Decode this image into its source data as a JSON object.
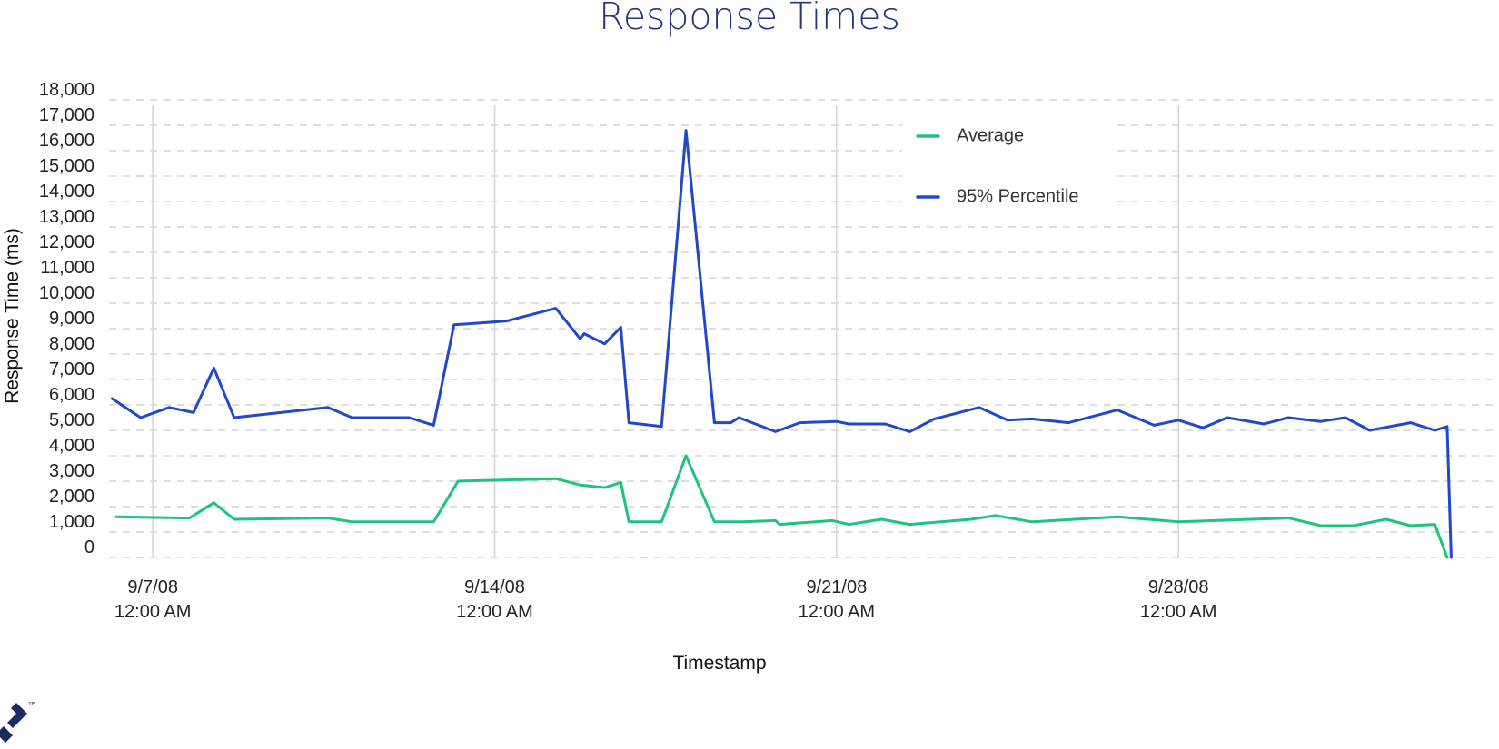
{
  "page": {
    "background": "#ffffff"
  },
  "logo": {
    "icon": "toptal-logo-icon",
    "mark": "™",
    "color": "#1a2a66"
  },
  "chart_data": {
    "type": "line",
    "title": "Response Times",
    "xlabel": "Timestamp",
    "ylabel": "Response Time (ms)",
    "x_type": "datetime",
    "xlim": [
      "2008-09-06 02:30",
      "2008-10-04 13:30"
    ],
    "ylim": [
      0,
      18000
    ],
    "yticks": [
      0,
      1000,
      2000,
      3000,
      4000,
      5000,
      6000,
      7000,
      8000,
      9000,
      10000,
      11000,
      12000,
      13000,
      14000,
      15000,
      16000,
      17000,
      18000
    ],
    "ytick_labels": [
      "0",
      "1,000",
      "2,000",
      "3,000",
      "4,000",
      "5,000",
      "6,000",
      "7,000",
      "8,000",
      "9,000",
      "10,000",
      "11,000",
      "12,000",
      "13,000",
      "14,000",
      "15,000",
      "16,000",
      "17,000",
      "18,000"
    ],
    "xticks": [
      {
        "x": "2008-09-07 00:00",
        "line1": "9/7/08",
        "line2": "12:00 AM"
      },
      {
        "x": "2008-09-14 00:00",
        "line1": "9/14/08",
        "line2": "12:00 AM"
      },
      {
        "x": "2008-09-21 00:00",
        "line1": "9/21/08",
        "line2": "12:00 AM"
      },
      {
        "x": "2008-09-28 00:00",
        "line1": "9/28/08",
        "line2": "12:00 AM"
      }
    ],
    "grid": {
      "horizontal": "dashed",
      "vertical": "major-x-ticks"
    },
    "legend": {
      "position": "top-right-inside"
    },
    "series": [
      {
        "name": "Average",
        "color": "#1ec47e",
        "points": [
          [
            "2008-09-06 06:00",
            1600
          ],
          [
            "2008-09-07 18:00",
            1550
          ],
          [
            "2008-09-08 06:00",
            2150
          ],
          [
            "2008-09-08 16:00",
            1500
          ],
          [
            "2008-09-10 14:00",
            1550
          ],
          [
            "2008-09-11 02:00",
            1400
          ],
          [
            "2008-09-12 18:00",
            1400
          ],
          [
            "2008-09-13 06:00",
            3000
          ],
          [
            "2008-09-15 06:00",
            3100
          ],
          [
            "2008-09-15 18:00",
            2850
          ],
          [
            "2008-09-16 06:00",
            2750
          ],
          [
            "2008-09-16 14:00",
            2950
          ],
          [
            "2008-09-16 18:00",
            1400
          ],
          [
            "2008-09-17 10:00",
            1400
          ],
          [
            "2008-09-17 22:00",
            4000
          ],
          [
            "2008-09-18 12:00",
            1400
          ],
          [
            "2008-09-19 02:00",
            1400
          ],
          [
            "2008-09-19 18:00",
            1450
          ],
          [
            "2008-09-19 20:00",
            1300
          ],
          [
            "2008-09-20 22:00",
            1450
          ],
          [
            "2008-09-21 06:00",
            1300
          ],
          [
            "2008-09-21 22:00",
            1500
          ],
          [
            "2008-09-22 12:00",
            1300
          ],
          [
            "2008-09-23 18:00",
            1500
          ],
          [
            "2008-09-24 06:00",
            1650
          ],
          [
            "2008-09-25 00:00",
            1400
          ],
          [
            "2008-09-26 18:00",
            1600
          ],
          [
            "2008-09-28 00:00",
            1400
          ],
          [
            "2008-09-30 06:00",
            1550
          ],
          [
            "2008-09-30 22:00",
            1250
          ],
          [
            "2008-10-01 14:00",
            1250
          ],
          [
            "2008-10-02 06:00",
            1500
          ],
          [
            "2008-10-02 18:00",
            1250
          ],
          [
            "2008-10-03 06:00",
            1300
          ],
          [
            "2008-10-03 12:00",
            0
          ]
        ]
      },
      {
        "name": "95% Percentile",
        "color": "#2148c7",
        "points": [
          [
            "2008-09-06 04:00",
            6250
          ],
          [
            "2008-09-06 18:00",
            5500
          ],
          [
            "2008-09-07 08:00",
            5900
          ],
          [
            "2008-09-07 20:00",
            5700
          ],
          [
            "2008-09-08 06:00",
            7450
          ],
          [
            "2008-09-08 16:00",
            5500
          ],
          [
            "2008-09-10 14:00",
            5900
          ],
          [
            "2008-09-11 02:00",
            5500
          ],
          [
            "2008-09-12 06:00",
            5500
          ],
          [
            "2008-09-12 18:00",
            5200
          ],
          [
            "2008-09-13 04:00",
            9150
          ],
          [
            "2008-09-14 06:00",
            9300
          ],
          [
            "2008-09-15 06:00",
            9800
          ],
          [
            "2008-09-15 18:00",
            8600
          ],
          [
            "2008-09-15 20:00",
            8800
          ],
          [
            "2008-09-16 06:00",
            8400
          ],
          [
            "2008-09-16 14:00",
            9050
          ],
          [
            "2008-09-16 18:00",
            5300
          ],
          [
            "2008-09-17 10:00",
            5150
          ],
          [
            "2008-09-17 22:00",
            16800
          ],
          [
            "2008-09-18 12:00",
            5300
          ],
          [
            "2008-09-18 20:00",
            5300
          ],
          [
            "2008-09-19 00:00",
            5500
          ],
          [
            "2008-09-19 18:00",
            4950
          ],
          [
            "2008-09-20 06:00",
            5300
          ],
          [
            "2008-09-21 00:00",
            5350
          ],
          [
            "2008-09-21 06:00",
            5250
          ],
          [
            "2008-09-22 00:00",
            5250
          ],
          [
            "2008-09-22 12:00",
            4950
          ],
          [
            "2008-09-23 00:00",
            5450
          ],
          [
            "2008-09-23 22:00",
            5900
          ],
          [
            "2008-09-24 12:00",
            5400
          ],
          [
            "2008-09-25 00:00",
            5450
          ],
          [
            "2008-09-25 18:00",
            5300
          ],
          [
            "2008-09-26 18:00",
            5800
          ],
          [
            "2008-09-27 12:00",
            5200
          ],
          [
            "2008-09-28 00:00",
            5400
          ],
          [
            "2008-09-28 12:00",
            5100
          ],
          [
            "2008-09-29 00:00",
            5500
          ],
          [
            "2008-09-29 18:00",
            5250
          ],
          [
            "2008-09-30 06:00",
            5500
          ],
          [
            "2008-09-30 22:00",
            5350
          ],
          [
            "2008-10-01 10:00",
            5500
          ],
          [
            "2008-10-01 22:00",
            5000
          ],
          [
            "2008-10-02 18:00",
            5300
          ],
          [
            "2008-10-03 06:00",
            5000
          ],
          [
            "2008-10-03 12:00",
            5150
          ],
          [
            "2008-10-03 14:00",
            0
          ]
        ]
      }
    ]
  }
}
